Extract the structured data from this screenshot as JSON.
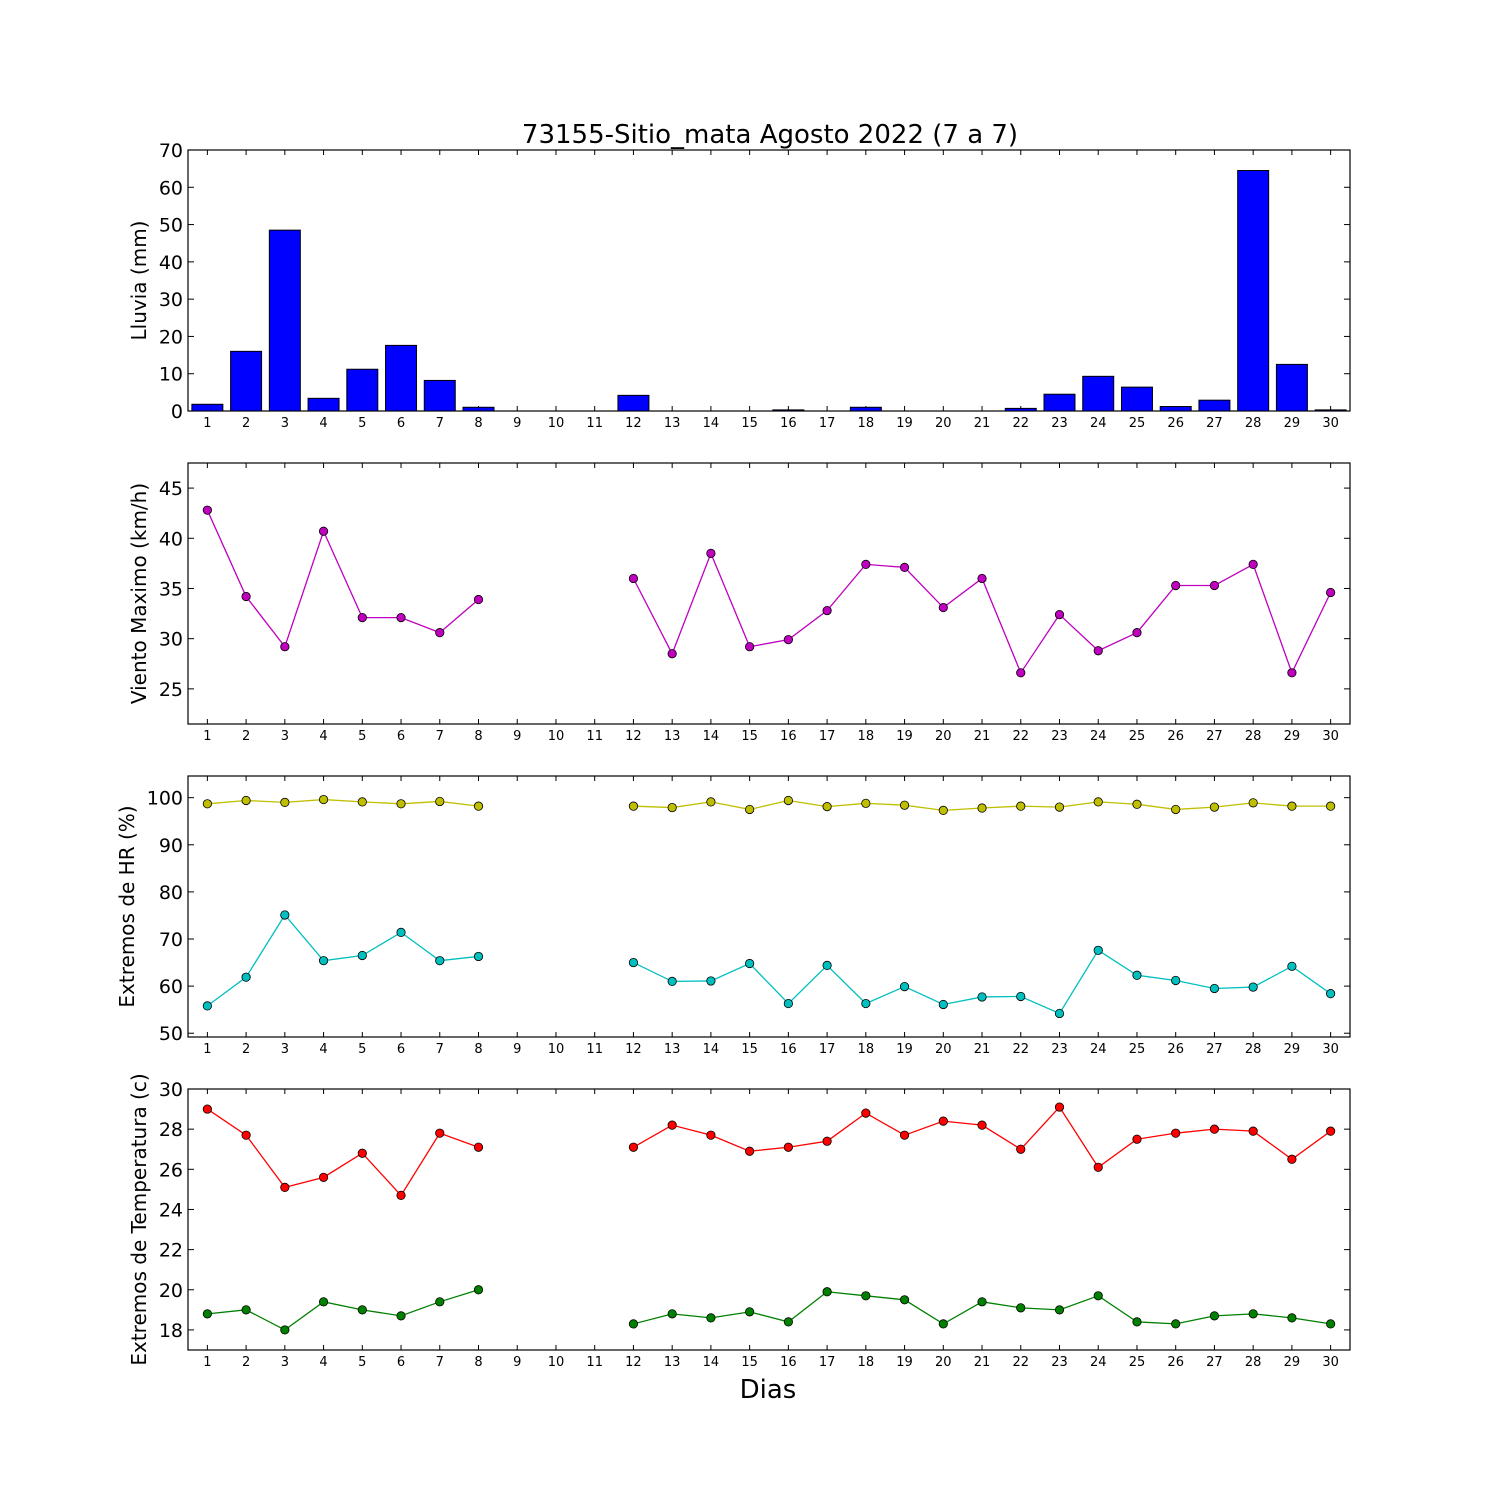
{
  "title": "73155-Sitio_mata Agosto 2022  (7 a 7)",
  "xlabel": "Dias",
  "chart_data": [
    {
      "type": "bar",
      "ylabel": "Lluvia (mm)",
      "ylim": [
        0,
        70
      ],
      "yticks": [
        0,
        10,
        20,
        30,
        40,
        50,
        60,
        70
      ],
      "categories": [
        "1",
        "2",
        "3",
        "4",
        "5",
        "6",
        "7",
        "8",
        "9",
        "10",
        "11",
        "12",
        "13",
        "14",
        "15",
        "16",
        "17",
        "18",
        "19",
        "20",
        "21",
        "22",
        "23",
        "24",
        "25",
        "26",
        "27",
        "28",
        "29",
        "30"
      ],
      "series": [
        {
          "color": "#0000ff",
          "values": [
            1.8,
            16.0,
            48.5,
            3.4,
            11.2,
            17.6,
            8.2,
            1.0,
            0,
            0,
            0,
            4.2,
            0,
            0,
            0,
            0.3,
            0,
            1.0,
            0,
            0,
            0,
            0.7,
            4.5,
            9.3,
            6.4,
            1.2,
            2.9,
            64.5,
            12.5,
            0.3
          ]
        }
      ]
    },
    {
      "type": "line",
      "ylabel": "Viento Maximo (km/h)",
      "ylim": [
        21.5,
        47.5
      ],
      "yticks": [
        25,
        30,
        35,
        40,
        45
      ],
      "categories": [
        "1",
        "2",
        "3",
        "4",
        "5",
        "6",
        "7",
        "8",
        "9",
        "10",
        "11",
        "12",
        "13",
        "14",
        "15",
        "16",
        "17",
        "18",
        "19",
        "20",
        "21",
        "22",
        "23",
        "24",
        "25",
        "26",
        "27",
        "28",
        "29",
        "30"
      ],
      "series": [
        {
          "color": "#bf00bf",
          "values": [
            42.8,
            34.2,
            29.2,
            40.7,
            32.1,
            32.1,
            30.6,
            33.9,
            null,
            null,
            null,
            36.0,
            28.5,
            38.5,
            29.2,
            29.9,
            32.8,
            37.4,
            37.1,
            33.1,
            36.0,
            26.6,
            32.4,
            28.8,
            30.6,
            35.3,
            35.3,
            37.4,
            26.6,
            34.6
          ]
        }
      ]
    },
    {
      "type": "line",
      "ylabel": "Extremos de HR (%)",
      "ylim": [
        49.2,
        104.6
      ],
      "yticks": [
        50,
        60,
        70,
        80,
        90,
        100
      ],
      "categories": [
        "1",
        "2",
        "3",
        "4",
        "5",
        "6",
        "7",
        "8",
        "9",
        "10",
        "11",
        "12",
        "13",
        "14",
        "15",
        "16",
        "17",
        "18",
        "19",
        "20",
        "21",
        "22",
        "23",
        "24",
        "25",
        "26",
        "27",
        "28",
        "29",
        "30"
      ],
      "series": [
        {
          "color": "#bfbf00",
          "values": [
            98.7,
            99.4,
            99.0,
            99.6,
            99.1,
            98.7,
            99.2,
            98.2,
            null,
            null,
            null,
            98.2,
            97.9,
            99.1,
            97.5,
            99.4,
            98.1,
            98.8,
            98.4,
            97.3,
            97.8,
            98.2,
            98.0,
            99.1,
            98.6,
            97.5,
            98.0,
            98.9,
            98.2,
            98.2
          ]
        },
        {
          "color": "#00bfbf",
          "values": [
            55.8,
            61.9,
            75.1,
            65.4,
            66.5,
            71.4,
            65.4,
            66.3,
            null,
            null,
            null,
            65.0,
            61.0,
            61.1,
            64.8,
            56.3,
            64.4,
            56.3,
            59.9,
            56.1,
            57.7,
            57.8,
            54.2,
            67.6,
            62.3,
            61.2,
            59.5,
            59.8,
            64.2,
            58.4
          ]
        }
      ]
    },
    {
      "type": "line",
      "ylabel": "Extremos de Temperatura (c)",
      "ylim": [
        17,
        30
      ],
      "yticks": [
        18,
        20,
        22,
        24,
        26,
        28,
        30
      ],
      "categories": [
        "1",
        "2",
        "3",
        "4",
        "5",
        "6",
        "7",
        "8",
        "9",
        "10",
        "11",
        "12",
        "13",
        "14",
        "15",
        "16",
        "17",
        "18",
        "19",
        "20",
        "21",
        "22",
        "23",
        "24",
        "25",
        "26",
        "27",
        "28",
        "29",
        "30"
      ],
      "series": [
        {
          "color": "#ff0000",
          "values": [
            29.0,
            27.7,
            25.1,
            25.6,
            26.8,
            24.7,
            27.8,
            27.1,
            null,
            null,
            null,
            27.1,
            28.2,
            27.7,
            26.9,
            27.1,
            27.4,
            28.8,
            27.7,
            28.4,
            28.2,
            27.0,
            29.1,
            26.1,
            27.5,
            27.8,
            28.0,
            27.9,
            26.5,
            27.9
          ]
        },
        {
          "color": "#008000",
          "values": [
            18.8,
            19.0,
            18.0,
            19.4,
            19.0,
            18.7,
            19.4,
            20.0,
            null,
            null,
            null,
            18.3,
            18.8,
            18.6,
            18.9,
            18.4,
            19.9,
            19.7,
            19.5,
            18.3,
            19.4,
            19.1,
            19.0,
            19.7,
            18.4,
            18.3,
            18.7,
            18.8,
            18.6,
            18.3
          ]
        }
      ]
    }
  ]
}
